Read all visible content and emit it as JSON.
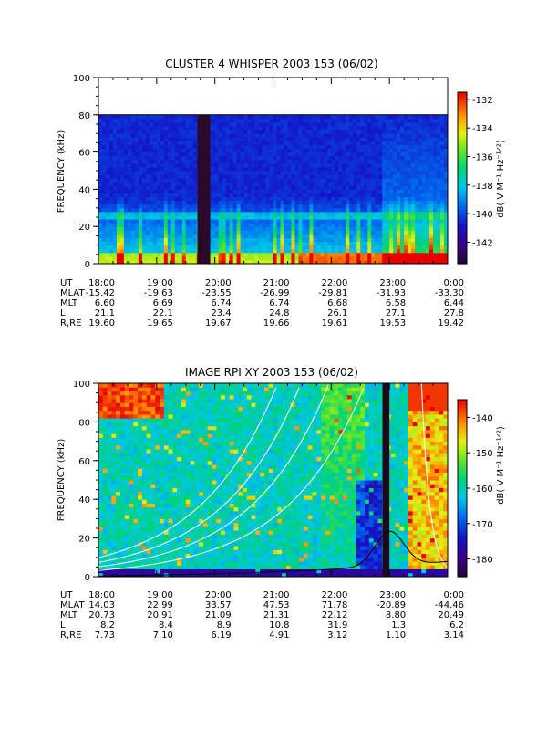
{
  "chart_data": [
    {
      "type": "heatmap",
      "title": "CLUSTER 4 WHISPER 2003 153 (06/02)",
      "ylabel": "FREQUENCY (kHz)",
      "ylim": [
        0,
        100
      ],
      "y_ticks": [
        "0",
        "20",
        "40",
        "60",
        "80",
        "100"
      ],
      "data_ceiling_khz": 80,
      "colorbar": {
        "label": "dB( V M⁻¹ Hz⁻¹ᐟ²)",
        "range": [
          -143.5,
          -131.5
        ],
        "ticks": [
          "-132",
          "-134",
          "-136",
          "-138",
          "-140",
          "-142"
        ]
      },
      "data_gap_hours": [
        [
          19.7,
          19.92
        ]
      ],
      "ephemeris": {
        "row_labels": [
          "UT",
          "MLAT",
          "MLT",
          "L",
          "R,RE"
        ],
        "columns": [
          [
            "18:00",
            "-15.42",
            "6.60",
            "21.1",
            "19.60"
          ],
          [
            "19:00",
            "-19.63",
            "6.69",
            "22.1",
            "19.65"
          ],
          [
            "20:00",
            "-23.55",
            "6.74",
            "23.4",
            "19.67"
          ],
          [
            "21:00",
            "-26.99",
            "6.74",
            "24.8",
            "19.66"
          ],
          [
            "22:00",
            "-29.81",
            "6.68",
            "26.1",
            "19.61"
          ],
          [
            "23:00",
            "-31.93",
            "6.58",
            "27.1",
            "19.53"
          ],
          [
            "0:00",
            "-33.30",
            "6.44",
            "27.8",
            "19.42"
          ]
        ]
      }
    },
    {
      "type": "heatmap",
      "title": "IMAGE RPI XY 2003 153 (06/02)",
      "ylabel": "FREQUENCY (kHz)",
      "ylim": [
        0,
        100
      ],
      "y_ticks": [
        "0",
        "20",
        "40",
        "60",
        "80",
        "100"
      ],
      "colorbar": {
        "label": "dB( V M⁻¹ Hz⁻¹ᐟ²)",
        "range": [
          -185,
          -135
        ],
        "ticks": [
          "-140",
          "-150",
          "-160",
          "-170",
          "-180"
        ]
      },
      "data_gap_hours": [
        [
          22.88,
          23.0
        ]
      ],
      "ephemeris": {
        "row_labels": [
          "UT",
          "MLAT",
          "MLT",
          "L",
          "R,RE"
        ],
        "columns": [
          [
            "18:00",
            "14.03",
            "20.73",
            "8.2",
            "7.73"
          ],
          [
            "19:00",
            "22.99",
            "20.91",
            "8.4",
            "7.10"
          ],
          [
            "20:00",
            "33.57",
            "21.09",
            "8.9",
            "6.19"
          ],
          [
            "21:00",
            "47.53",
            "21.31",
            "10.8",
            "4.91"
          ],
          [
            "22:00",
            "71.78",
            "22.12",
            "31.9",
            "3.12"
          ],
          [
            "23:00",
            "-20.89",
            "8.80",
            "1.3",
            "1.10"
          ],
          [
            "0:00",
            "-44.46",
            "20.49",
            "6.2",
            "3.14"
          ]
        ]
      }
    }
  ]
}
